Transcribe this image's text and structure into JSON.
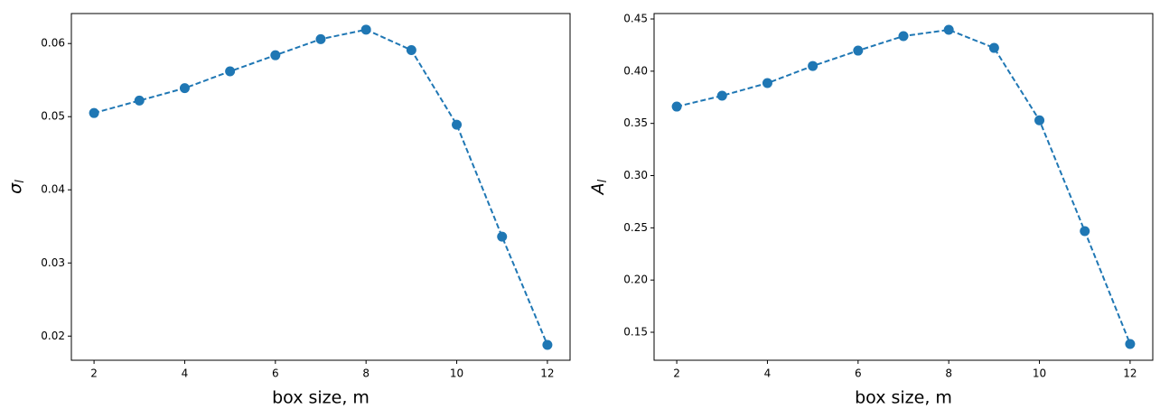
{
  "chart_data": [
    {
      "type": "line",
      "xlabel": "box size, m",
      "ylabel": "σ",
      "ylabel_subscript": "l",
      "x": [
        2,
        3,
        4,
        5,
        6,
        7,
        8,
        9,
        10,
        11,
        12
      ],
      "series": [
        {
          "color": "#1f77b4",
          "values": [
            0.0505,
            0.0522,
            0.0539,
            0.0562,
            0.0584,
            0.0606,
            0.0619,
            0.0591,
            0.0489,
            0.0336,
            0.0188
          ]
        }
      ],
      "xlim": [
        1.5,
        12.5
      ],
      "xticks": [
        2,
        4,
        6,
        8,
        10,
        12
      ],
      "ylim": [
        0.0167,
        0.0641
      ],
      "yticks": [
        0.02,
        0.03,
        0.04,
        0.05,
        0.06
      ],
      "grid": false
    },
    {
      "type": "line",
      "xlabel": "box size, m",
      "ylabel": "A",
      "ylabel_subscript": "l",
      "x": [
        2,
        3,
        4,
        5,
        6,
        7,
        8,
        9,
        10,
        11,
        12
      ],
      "series": [
        {
          "color": "#1f77b4",
          "values": [
            0.3661,
            0.3765,
            0.3886,
            0.405,
            0.4197,
            0.4336,
            0.4396,
            0.4223,
            0.353,
            0.2468,
            0.1388
          ]
        }
      ],
      "xlim": [
        1.5,
        12.5
      ],
      "xticks": [
        2,
        4,
        6,
        8,
        10,
        12
      ],
      "ylim": [
        0.1232,
        0.4552
      ],
      "yticks": [
        0.15,
        {
          "value": 0.2,
          "label": "0.20"
        },
        0.25,
        {
          "value": 0.3,
          "label": "0.30"
        },
        0.35,
        {
          "value": 0.4,
          "label": "0.40"
        },
        0.45
      ],
      "grid": false
    }
  ]
}
